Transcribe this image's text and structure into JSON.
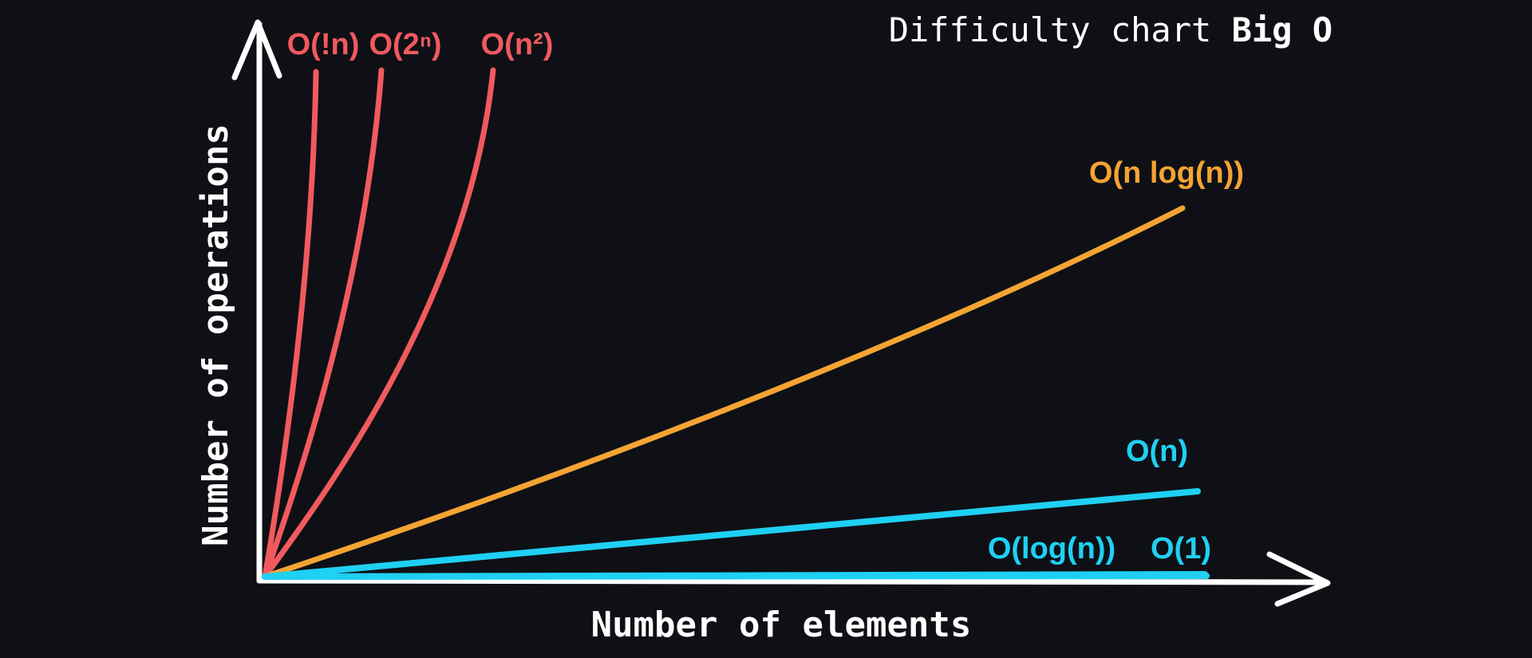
{
  "chart_data": {
    "type": "line",
    "title": "Difficulty chart",
    "title_bold": "Big O",
    "xlabel": "Number of elements",
    "ylabel": "Number of operations",
    "grid": false,
    "legend": "curve-end labels",
    "series": [
      {
        "name": "O(!n)",
        "color": "#f05a5d",
        "kind": "factorial"
      },
      {
        "name": "O(2^n)",
        "display": "O(2ⁿ)",
        "color": "#f05a5d",
        "kind": "exponential"
      },
      {
        "name": "O(n^2)",
        "display": "O(n²)",
        "color": "#f05a5d",
        "kind": "quadratic"
      },
      {
        "name": "O(n log(n))",
        "display": "O(n log(n))",
        "color": "#f4a433",
        "kind": "linearithmic"
      },
      {
        "name": "O(n)",
        "display": "O(n)",
        "color": "#1fd0f2",
        "kind": "linear"
      },
      {
        "name": "O(log(n))",
        "display": "O(log(n))",
        "color": "#1fd0f2",
        "kind": "logarithmic"
      },
      {
        "name": "O(1)",
        "display": "O(1)",
        "color": "#1fd0f2",
        "kind": "constant"
      }
    ]
  },
  "colors": {
    "background": "#0e1016",
    "axis": "#ffffff",
    "text": "#ffffff"
  }
}
